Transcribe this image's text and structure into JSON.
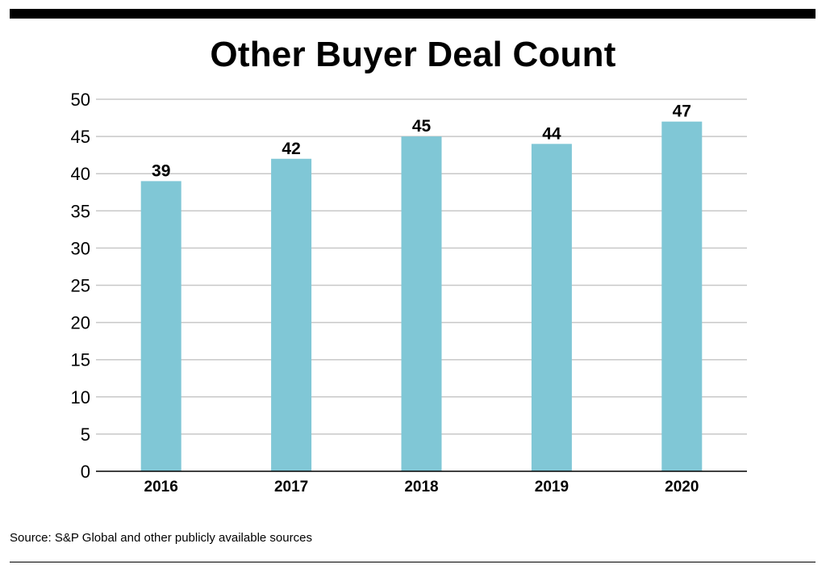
{
  "chart_data": {
    "type": "bar",
    "title": "Other Buyer Deal Count",
    "categories": [
      "2016",
      "2017",
      "2018",
      "2019",
      "2020"
    ],
    "values": [
      39,
      42,
      45,
      44,
      47
    ],
    "data_labels": [
      "39",
      "42",
      "45",
      "44",
      "47"
    ],
    "y_ticks": [
      "0",
      "5",
      "10",
      "15",
      "20",
      "25",
      "30",
      "35",
      "40",
      "45",
      "50"
    ],
    "ylim": [
      0,
      50
    ],
    "grid": true,
    "bar_color": "#80c7d6",
    "grid_color": "#c8c8c8",
    "axis_color": "#000000"
  },
  "footer": {
    "source": "Source: S&P Global and other publicly available sources"
  }
}
